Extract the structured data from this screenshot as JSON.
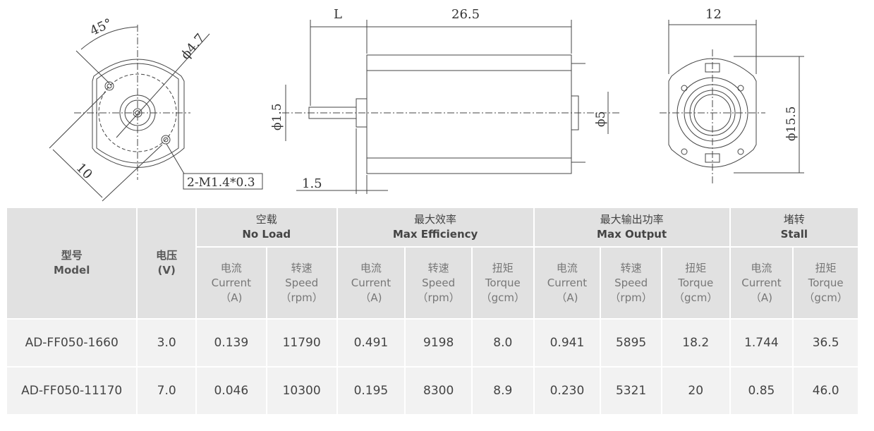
{
  "drawing": {
    "front_view": {
      "angle": "45°",
      "hole_circle": "ϕ4.7",
      "width": "10",
      "thread": "2-M1.4*0.3"
    },
    "side_view": {
      "shaft_length": "L",
      "body_length": "26.5",
      "shaft_dia": "ϕ1.5",
      "boss_dia": "ϕ5",
      "flange": "1.5"
    },
    "rear_view": {
      "width": "12",
      "height": "ϕ15.5"
    }
  },
  "table": {
    "model": {
      "zh": "型号",
      "en": "Model"
    },
    "voltage": {
      "zh": "电压",
      "en": "(V)"
    },
    "groups": [
      {
        "zh": "空载",
        "en": "No Load"
      },
      {
        "zh": "最大效率",
        "en": "Max Efficiency"
      },
      {
        "zh": "最大输出功率",
        "en": "Max Output"
      },
      {
        "zh": "堵转",
        "en": "Stall"
      }
    ],
    "subheaders": [
      {
        "zh": "电流",
        "en": "Current",
        "unit": "（A)"
      },
      {
        "zh": "转速",
        "en": "Speed",
        "unit": "（rpm）"
      },
      {
        "zh": "电流",
        "en": "Current",
        "unit": "（A)"
      },
      {
        "zh": "转速",
        "en": "Speed",
        "unit": "（rpm）"
      },
      {
        "zh": "扭矩",
        "en": "Torque",
        "unit": "（gcm）"
      },
      {
        "zh": "电流",
        "en": "Current",
        "unit": "（A)"
      },
      {
        "zh": "转速",
        "en": "Speed",
        "unit": "（rpm）"
      },
      {
        "zh": "扭矩",
        "en": "Torque",
        "unit": "（gcm）"
      },
      {
        "zh": "电流",
        "en": "Current",
        "unit": "（A)"
      },
      {
        "zh": "扭矩",
        "en": "Torque",
        "unit": "（gcm）"
      }
    ],
    "rows": [
      [
        "AD-FF050-1660",
        "3.0",
        "0.139",
        "11790",
        "0.491",
        "9198",
        "8.0",
        "0.941",
        "5895",
        "18.2",
        "1.744",
        "36.5"
      ],
      [
        "AD-FF050-11170",
        "7.0",
        "0.046",
        "10300",
        "0.195",
        "8300",
        "8.9",
        "0.230",
        "5321",
        "20",
        "0.85",
        "46.0"
      ]
    ]
  }
}
